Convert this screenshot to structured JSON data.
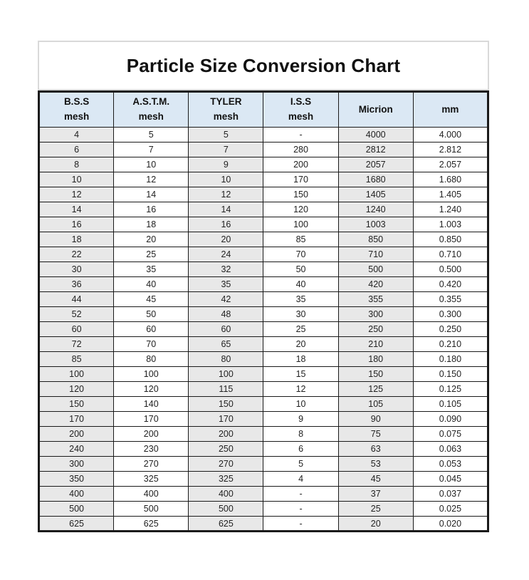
{
  "page_title": "Particle Size Conversion Chart",
  "colors": {
    "header_bg": "#dbe8f4",
    "shaded_column_bg": "#e8e8e8",
    "table_border": "#1a1a1a",
    "title_box_border": "#d9d9d9",
    "page_bg": "#ffffff"
  },
  "chart_data": {
    "type": "table",
    "title": "Particle Size Conversion Chart",
    "columns": [
      {
        "id": "bss",
        "line1": "B.S.S",
        "line2": "mesh",
        "shaded": true
      },
      {
        "id": "astm",
        "line1": "A.S.T.M.",
        "line2": "mesh",
        "shaded": false
      },
      {
        "id": "tyler",
        "line1": "TYLER",
        "line2": "mesh",
        "shaded": true
      },
      {
        "id": "iss",
        "line1": "I.S.S",
        "line2": "mesh",
        "shaded": false
      },
      {
        "id": "micrion",
        "line1": "Micrion",
        "line2": "",
        "shaded": true
      },
      {
        "id": "mm",
        "line1": "mm",
        "line2": "",
        "shaded": false
      }
    ],
    "rows": [
      [
        "4",
        "5",
        "5",
        "-",
        "4000",
        "4.000"
      ],
      [
        "6",
        "7",
        "7",
        "280",
        "2812",
        "2.812"
      ],
      [
        "8",
        "10",
        "9",
        "200",
        "2057",
        "2.057"
      ],
      [
        "10",
        "12",
        "10",
        "170",
        "1680",
        "1.680"
      ],
      [
        "12",
        "14",
        "12",
        "150",
        "1405",
        "1.405"
      ],
      [
        "14",
        "16",
        "14",
        "120",
        "1240",
        "1.240"
      ],
      [
        "16",
        "18",
        "16",
        "100",
        "1003",
        "1.003"
      ],
      [
        "18",
        "20",
        "20",
        "85",
        "850",
        "0.850"
      ],
      [
        "22",
        "25",
        "24",
        "70",
        "710",
        "0.710"
      ],
      [
        "30",
        "35",
        "32",
        "50",
        "500",
        "0.500"
      ],
      [
        "36",
        "40",
        "35",
        "40",
        "420",
        "0.420"
      ],
      [
        "44",
        "45",
        "42",
        "35",
        "355",
        "0.355"
      ],
      [
        "52",
        "50",
        "48",
        "30",
        "300",
        "0.300"
      ],
      [
        "60",
        "60",
        "60",
        "25",
        "250",
        "0.250"
      ],
      [
        "72",
        "70",
        "65",
        "20",
        "210",
        "0.210"
      ],
      [
        "85",
        "80",
        "80",
        "18",
        "180",
        "0.180"
      ],
      [
        "100",
        "100",
        "100",
        "15",
        "150",
        "0.150"
      ],
      [
        "120",
        "120",
        "115",
        "12",
        "125",
        "0.125"
      ],
      [
        "150",
        "140",
        "150",
        "10",
        "105",
        "0.105"
      ],
      [
        "170",
        "170",
        "170",
        "9",
        "90",
        "0.090"
      ],
      [
        "200",
        "200",
        "200",
        "8",
        "75",
        "0.075"
      ],
      [
        "240",
        "230",
        "250",
        "6",
        "63",
        "0.063"
      ],
      [
        "300",
        "270",
        "270",
        "5",
        "53",
        "0.053"
      ],
      [
        "350",
        "325",
        "325",
        "4",
        "45",
        "0.045"
      ],
      [
        "400",
        "400",
        "400",
        "-",
        "37",
        "0.037"
      ],
      [
        "500",
        "500",
        "500",
        "-",
        "25",
        "0.025"
      ],
      [
        "625",
        "625",
        "625",
        "-",
        "20",
        "0.020"
      ]
    ]
  }
}
